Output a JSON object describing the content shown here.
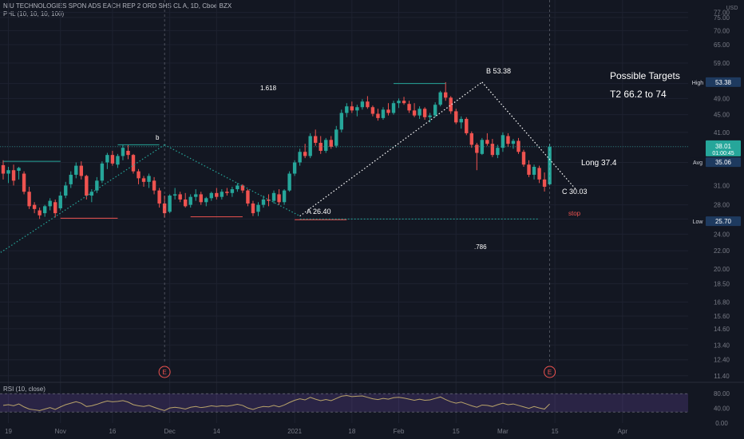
{
  "header": {
    "title": "NIU TECHNOLOGIES SPON ADS EACH REP 2 ORD SHS CL A, 1D, Cboe BZX",
    "indicator": "PHL (10, 10, 10, 100)",
    "currency": "USD"
  },
  "colors": {
    "background": "#131722",
    "up": "#26a69a",
    "down": "#ef5350",
    "rsi_line": "#b8a36a",
    "rsi_band": "#7e57c2",
    "label_blue": "#1e53e5",
    "label_green": "#26a69a",
    "wedge_blue": "#26a69a"
  },
  "annotations": {
    "fib_1618": "1.618",
    "fib_786": ".786",
    "b_small": "b",
    "point_a": "A 26.40",
    "point_b": "B 53.38",
    "point_c": "C 30.03",
    "long": "Long 37.4",
    "stop": "stop",
    "targets_title": "Possible Targets",
    "targets_t2": "T2  66.2 to 74",
    "event_marker": "E"
  },
  "price_labels": {
    "high_label": "High",
    "high_value": "53.38",
    "last_value": "38.01",
    "countdown": "01:00:45",
    "avg_label": "Avg",
    "avg_value": "35.06",
    "low_label": "Low",
    "low_value": "25.70"
  },
  "rsi": {
    "label": "RSI (10, close)",
    "axis": [
      "80.00",
      "40.00",
      "0.00"
    ]
  },
  "chart_data": {
    "type": "candlestick",
    "scale": "log",
    "ylim": [
      11.2,
      79.5
    ],
    "y_ticks": [
      "77.00",
      "75.00",
      "70.00",
      "65.00",
      "59.00",
      "53.00",
      "49.00",
      "45.00",
      "41.00",
      "38.00",
      "35.00",
      "31.00",
      "28.00",
      "26.00",
      "24.00",
      "22.00",
      "20.00",
      "18.50",
      "16.80",
      "15.60",
      "14.60",
      "13.40",
      "12.40",
      "11.40"
    ],
    "x_tick_labels": [
      {
        "label": "19",
        "date": "2020-10-19"
      },
      {
        "label": "Nov",
        "date": "2020-11-02"
      },
      {
        "label": "16",
        "date": "2020-11-16"
      },
      {
        "label": "Dec",
        "date": "2020-12-01"
      },
      {
        "label": "14",
        "date": "2020-12-14"
      },
      {
        "label": "2021",
        "date": "2021-01-04"
      },
      {
        "label": "18",
        "date": "2021-01-19"
      },
      {
        "label": "Feb",
        "date": "2021-02-01"
      },
      {
        "label": "15",
        "date": "2021-02-16"
      },
      {
        "label": "Mar",
        "date": "2021-03-01"
      },
      {
        "label": "15",
        "date": "2021-03-15"
      },
      {
        "label": "Apr",
        "date": "2021-04-01"
      }
    ],
    "candles": [
      [
        34.5,
        35.4,
        32.0,
        33.0
      ],
      [
        33.0,
        34.2,
        31.4,
        33.6
      ],
      [
        33.6,
        34.6,
        31.0,
        31.8
      ],
      [
        33.5,
        34.2,
        32.0,
        34.0
      ],
      [
        33.0,
        33.4,
        29.6,
        30.0
      ],
      [
        30.0,
        30.8,
        27.4,
        27.8
      ],
      [
        28.0,
        28.4,
        26.8,
        27.4
      ],
      [
        27.2,
        27.6,
        26.0,
        26.5
      ],
      [
        26.8,
        28.0,
        26.3,
        27.8
      ],
      [
        27.8,
        29.0,
        27.2,
        28.6
      ],
      [
        28.4,
        28.8,
        26.2,
        26.8
      ],
      [
        27.5,
        30.0,
        27.2,
        29.4
      ],
      [
        29.4,
        31.6,
        29.0,
        31.0
      ],
      [
        31.2,
        33.4,
        30.6,
        32.8
      ],
      [
        32.8,
        35.0,
        32.2,
        34.4
      ],
      [
        34.4,
        35.2,
        32.0,
        32.6
      ],
      [
        32.6,
        32.8,
        28.8,
        29.4
      ],
      [
        29.4,
        30.4,
        28.4,
        30.0
      ],
      [
        30.2,
        32.4,
        29.8,
        31.8
      ],
      [
        31.8,
        35.2,
        31.4,
        34.8
      ],
      [
        35.0,
        36.8,
        33.8,
        36.4
      ],
      [
        36.4,
        37.2,
        34.4,
        34.8
      ],
      [
        34.6,
        36.6,
        34.0,
        36.2
      ],
      [
        36.2,
        38.4,
        35.4,
        37.8
      ],
      [
        37.2,
        38.4,
        35.6,
        36.4
      ],
      [
        36.4,
        36.6,
        33.0,
        33.4
      ],
      [
        33.4,
        33.8,
        31.2,
        32.2
      ],
      [
        32.2,
        32.6,
        30.8,
        31.6
      ],
      [
        31.6,
        33.0,
        30.6,
        32.6
      ],
      [
        31.8,
        32.4,
        29.6,
        30.2
      ],
      [
        30.2,
        30.6,
        27.6,
        28.2
      ],
      [
        28.2,
        29.4,
        26.2,
        26.8
      ],
      [
        27.0,
        29.6,
        26.8,
        29.4
      ],
      [
        29.4,
        30.6,
        28.8,
        29.6
      ],
      [
        29.6,
        30.0,
        28.4,
        28.8
      ],
      [
        28.8,
        29.8,
        27.6,
        27.8
      ],
      [
        28.0,
        29.6,
        27.6,
        29.2
      ],
      [
        29.2,
        30.4,
        28.6,
        29.6
      ],
      [
        29.6,
        30.0,
        28.0,
        28.4
      ],
      [
        28.4,
        29.2,
        27.8,
        29.0
      ],
      [
        29.0,
        30.0,
        28.6,
        29.8
      ],
      [
        29.8,
        30.6,
        28.8,
        29.2
      ],
      [
        29.2,
        30.4,
        28.8,
        30.0
      ],
      [
        30.0,
        30.6,
        29.4,
        29.8
      ],
      [
        29.8,
        30.8,
        29.2,
        30.4
      ],
      [
        30.4,
        31.4,
        30.0,
        31.0
      ],
      [
        31.0,
        31.2,
        29.8,
        30.2
      ],
      [
        30.2,
        30.4,
        27.8,
        28.2
      ],
      [
        28.2,
        28.6,
        26.4,
        26.8
      ],
      [
        27.0,
        28.4,
        26.4,
        28.0
      ],
      [
        28.0,
        29.4,
        27.6,
        28.8
      ],
      [
        28.8,
        29.6,
        27.8,
        28.6
      ],
      [
        28.6,
        30.2,
        28.2,
        29.8
      ],
      [
        29.6,
        30.4,
        28.0,
        28.4
      ],
      [
        28.4,
        30.4,
        28.0,
        30.2
      ],
      [
        30.2,
        33.4,
        30.0,
        33.0
      ],
      [
        33.0,
        35.4,
        32.6,
        35.0
      ],
      [
        35.0,
        37.6,
        34.4,
        37.0
      ],
      [
        37.0,
        38.6,
        35.8,
        36.2
      ],
      [
        36.2,
        40.8,
        35.8,
        40.2
      ],
      [
        40.2,
        41.6,
        38.2,
        38.8
      ],
      [
        38.8,
        40.2,
        36.6,
        37.2
      ],
      [
        37.2,
        39.8,
        36.8,
        39.4
      ],
      [
        39.4,
        40.2,
        37.6,
        38.0
      ],
      [
        38.2,
        42.4,
        37.8,
        41.6
      ],
      [
        41.6,
        46.2,
        41.0,
        45.4
      ],
      [
        45.4,
        47.8,
        44.4,
        47.0
      ],
      [
        47.0,
        48.2,
        45.4,
        46.0
      ],
      [
        46.0,
        47.4,
        44.6,
        46.8
      ],
      [
        46.8,
        48.8,
        46.2,
        48.2
      ],
      [
        48.2,
        49.6,
        46.4,
        46.8
      ],
      [
        46.8,
        47.2,
        44.6,
        45.2
      ],
      [
        45.2,
        46.4,
        43.6,
        44.2
      ],
      [
        44.2,
        46.8,
        43.8,
        46.2
      ],
      [
        46.2,
        47.8,
        44.8,
        45.4
      ],
      [
        45.4,
        48.4,
        45.0,
        47.8
      ],
      [
        47.8,
        49.0,
        46.6,
        48.4
      ],
      [
        48.4,
        49.4,
        47.4,
        47.8
      ],
      [
        47.6,
        48.4,
        45.4,
        46.0
      ],
      [
        46.0,
        47.8,
        44.4,
        44.8
      ],
      [
        44.8,
        47.0,
        44.0,
        46.4
      ],
      [
        46.4,
        46.8,
        43.8,
        44.4
      ],
      [
        44.4,
        45.4,
        43.2,
        44.8
      ],
      [
        44.8,
        48.0,
        44.4,
        47.4
      ],
      [
        47.4,
        51.0,
        47.0,
        50.6
      ],
      [
        50.6,
        53.38,
        48.4,
        49.2
      ],
      [
        49.2,
        49.6,
        45.2,
        45.8
      ],
      [
        45.8,
        46.4,
        42.8,
        43.2
      ],
      [
        43.2,
        44.6,
        41.8,
        44.0
      ],
      [
        44.0,
        44.4,
        40.4,
        40.8
      ],
      [
        40.8,
        41.2,
        37.8,
        38.4
      ],
      [
        38.4,
        38.8,
        33.6,
        36.8
      ],
      [
        36.6,
        39.8,
        36.4,
        39.4
      ],
      [
        39.4,
        40.8,
        38.2,
        38.6
      ],
      [
        38.6,
        39.6,
        36.0,
        36.4
      ],
      [
        36.4,
        38.4,
        35.8,
        37.8
      ],
      [
        37.8,
        41.0,
        37.0,
        40.4
      ],
      [
        40.2,
        40.8,
        38.0,
        38.6
      ],
      [
        38.6,
        39.6,
        37.6,
        39.2
      ],
      [
        39.2,
        39.8,
        36.6,
        37.0
      ],
      [
        37.0,
        37.4,
        34.2,
        34.6
      ],
      [
        34.6,
        35.4,
        32.4,
        32.8
      ],
      [
        32.8,
        34.6,
        32.0,
        34.2
      ],
      [
        34.0,
        34.4,
        31.4,
        32.0
      ],
      [
        32.0,
        33.2,
        30.03,
        30.8
      ],
      [
        31.2,
        38.6,
        31.0,
        38.01
      ]
    ],
    "rsi_values": [
      48,
      50,
      47,
      52,
      44,
      38,
      36,
      34,
      38,
      42,
      37,
      44,
      50,
      54,
      58,
      54,
      45,
      47,
      51,
      56,
      60,
      58,
      59,
      61,
      57,
      50,
      47,
      45,
      48,
      43,
      38,
      34,
      41,
      43,
      41,
      38,
      43,
      45,
      42,
      44,
      47,
      45,
      47,
      46,
      48,
      51,
      48,
      41,
      37,
      42,
      45,
      44,
      48,
      44,
      49,
      56,
      62,
      66,
      63,
      70,
      65,
      61,
      64,
      61,
      67,
      73,
      75,
      72,
      73,
      74,
      70,
      66,
      64,
      67,
      65,
      69,
      70,
      68,
      65,
      62,
      65,
      62,
      63,
      67,
      71,
      64,
      58,
      54,
      57,
      52,
      47,
      43,
      49,
      48,
      45,
      50,
      54,
      50,
      52,
      48,
      44,
      40,
      45,
      41,
      38,
      52
    ],
    "levels": {
      "high": 53.38,
      "last": 38.01,
      "avg": 35.06,
      "low": 25.7
    }
  }
}
